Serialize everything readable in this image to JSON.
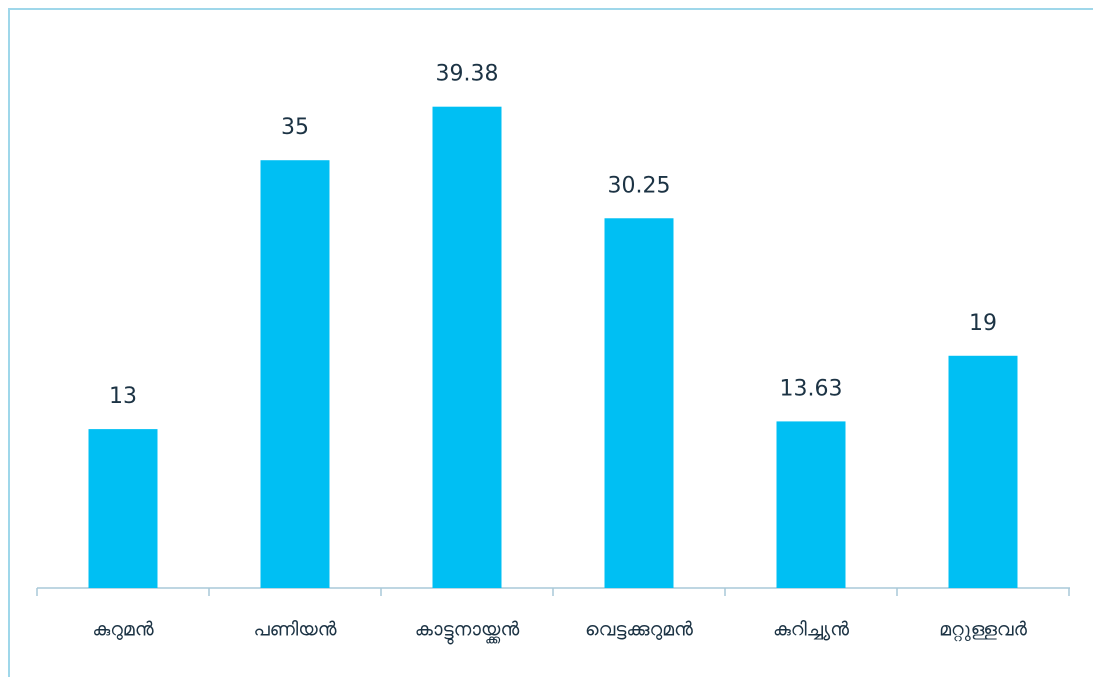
{
  "chart_data": {
    "type": "bar",
    "categories": [
      "കുറുമൻ",
      "പണിയൻ",
      "കാട്ടുനായ്ക്കൻ",
      "വെട്ടക്കുറുമൻ",
      "കുറിച്ച്യൻ",
      "മറ്റുള്ളവർ"
    ],
    "values": [
      13,
      35,
      39.38,
      30.25,
      13.63,
      19
    ],
    "color": "#00bff3",
    "ylim": [
      0,
      45
    ]
  }
}
